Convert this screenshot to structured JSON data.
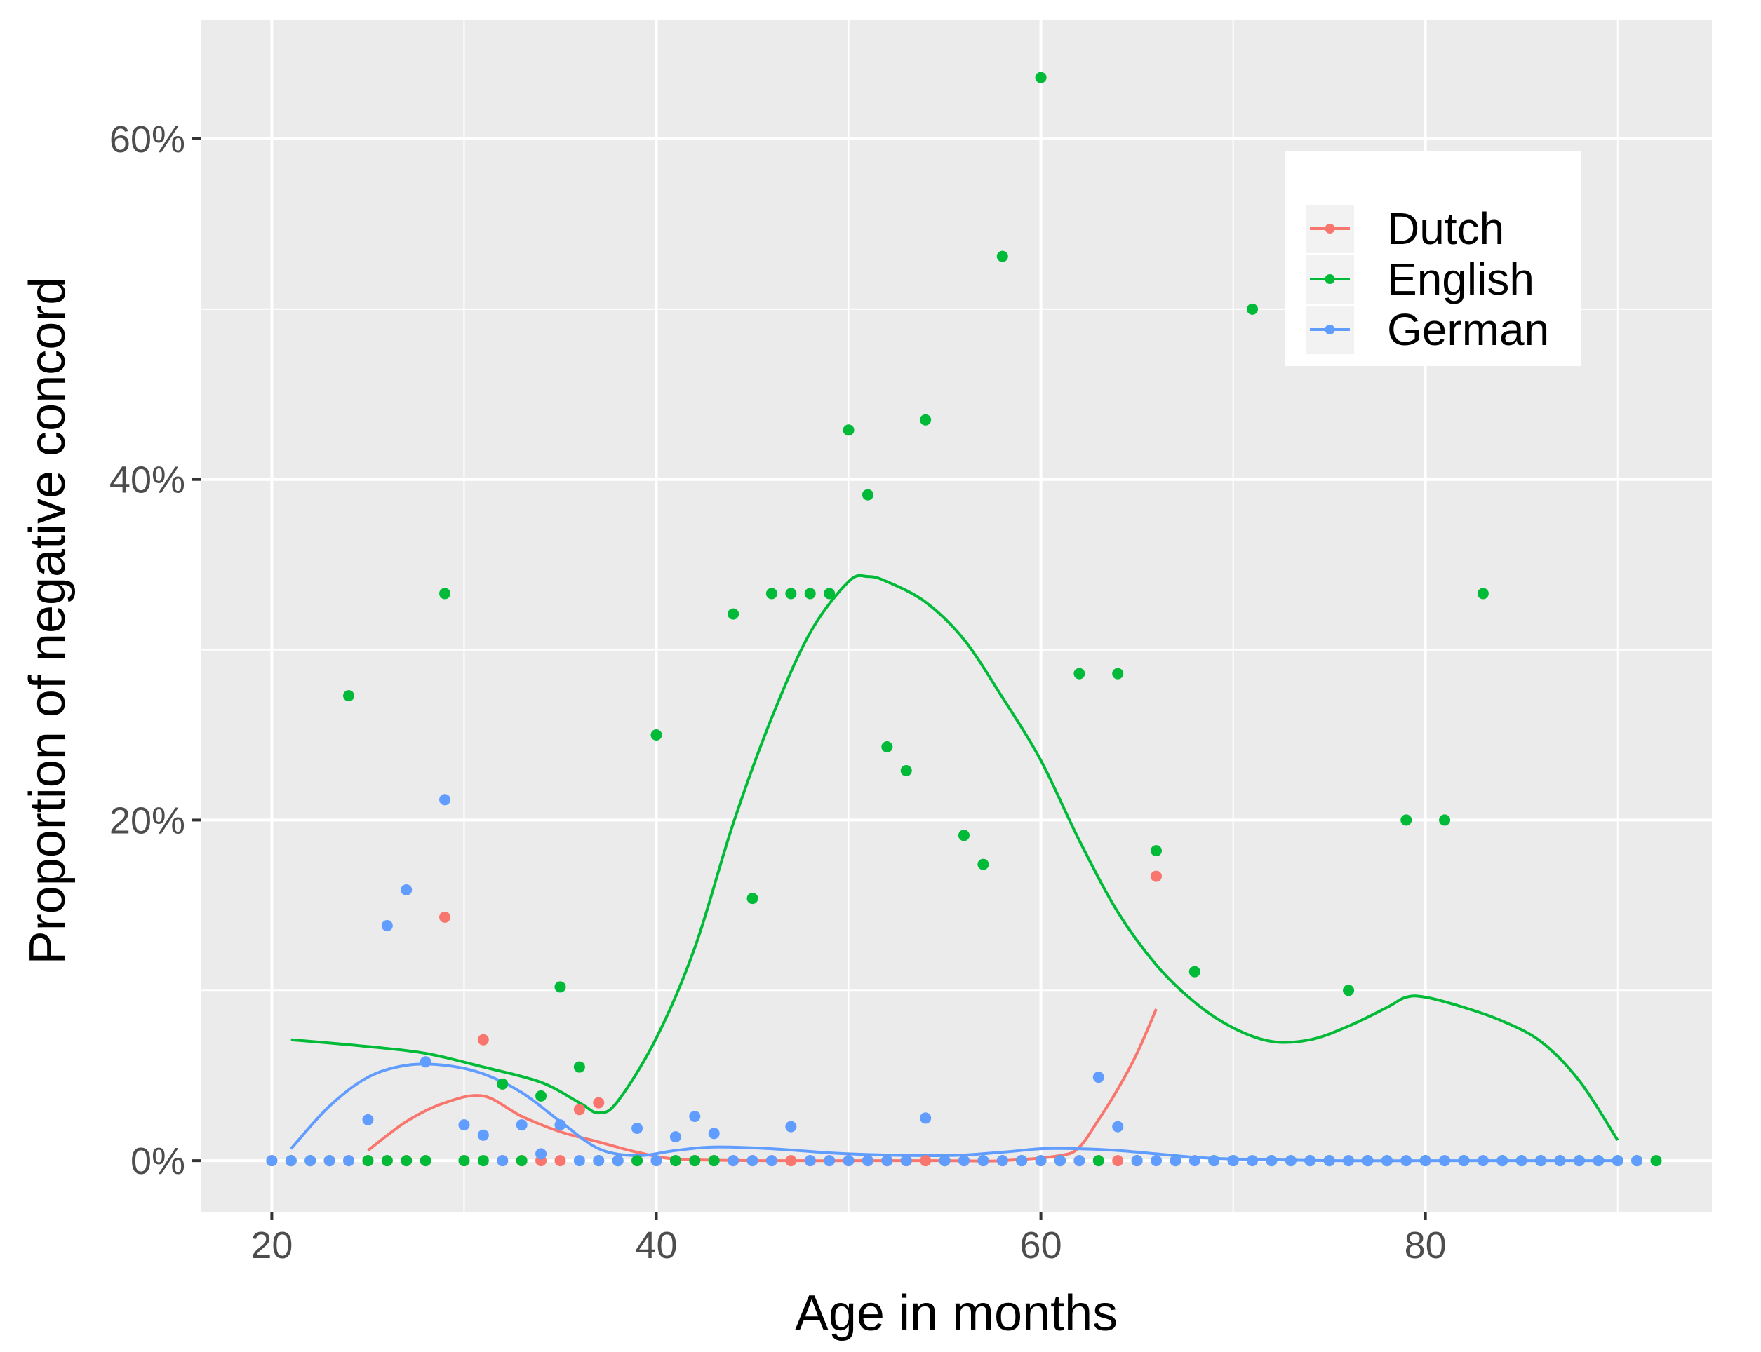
{
  "chart_data": {
    "type": "scatter",
    "title": "",
    "xlabel": "Age in months",
    "ylabel": "Proportion of negative concord",
    "xlim": [
      16.3,
      94.9
    ],
    "ylim": [
      -3,
      67
    ],
    "x_ticks": [
      20,
      40,
      60,
      80
    ],
    "x_tick_labels": [
      "20",
      "40",
      "60",
      "80"
    ],
    "y_ticks": [
      0,
      20,
      40,
      60
    ],
    "y_tick_labels": [
      "0%",
      "20%",
      "40%",
      "60%"
    ],
    "x_minor_ticks": [
      30,
      50,
      70,
      90
    ],
    "y_minor_ticks": [
      10,
      30,
      50
    ],
    "grid": true,
    "legend_position": "top-right",
    "series": [
      {
        "name": "Dutch",
        "color": "#F8766D",
        "points": [
          [
            20,
            0
          ],
          [
            21,
            0
          ],
          [
            22,
            0
          ],
          [
            23,
            0
          ],
          [
            24,
            0
          ],
          [
            25,
            0
          ],
          [
            26,
            0
          ],
          [
            27,
            0
          ],
          [
            28,
            0
          ],
          [
            29,
            14.3
          ],
          [
            30,
            0
          ],
          [
            31,
            7.1
          ],
          [
            32,
            0
          ],
          [
            33,
            0
          ],
          [
            34,
            0
          ],
          [
            35,
            0
          ],
          [
            36,
            3
          ],
          [
            37,
            3.4
          ],
          [
            38,
            0
          ],
          [
            39,
            0
          ],
          [
            40,
            0
          ],
          [
            41,
            0
          ],
          [
            42,
            0
          ],
          [
            43,
            0
          ],
          [
            44,
            0
          ],
          [
            45,
            0
          ],
          [
            46,
            0
          ],
          [
            47,
            0
          ],
          [
            48,
            0
          ],
          [
            49,
            0
          ],
          [
            50,
            0
          ],
          [
            51,
            0
          ],
          [
            52,
            0
          ],
          [
            53,
            0
          ],
          [
            54,
            0
          ],
          [
            55,
            0
          ],
          [
            56,
            0
          ],
          [
            57,
            0
          ],
          [
            58,
            0
          ],
          [
            59,
            0
          ],
          [
            60,
            0
          ],
          [
            61,
            0
          ],
          [
            62,
            0
          ],
          [
            63,
            0
          ],
          [
            64,
            0
          ],
          [
            65,
            0
          ],
          [
            66,
            16.7
          ]
        ],
        "smooth": [
          [
            25,
            0.6
          ],
          [
            27,
            2.3
          ],
          [
            29,
            3.4
          ],
          [
            31,
            3.8
          ],
          [
            33,
            2.6
          ],
          [
            35,
            1.7
          ],
          [
            37,
            1.1
          ],
          [
            39,
            0.5
          ],
          [
            41,
            0.1
          ],
          [
            45,
            0
          ],
          [
            50,
            0
          ],
          [
            55,
            0
          ],
          [
            58,
            0
          ],
          [
            61,
            0.3
          ],
          [
            62,
            0.8
          ],
          [
            63,
            2.4
          ],
          [
            64,
            4.2
          ],
          [
            65,
            6.3
          ],
          [
            66,
            8.9
          ]
        ]
      },
      {
        "name": "English",
        "color": "#00BA38",
        "points": [
          [
            21,
            0
          ],
          [
            22,
            0
          ],
          [
            23,
            0
          ],
          [
            24,
            27.3
          ],
          [
            25,
            0
          ],
          [
            26,
            0
          ],
          [
            27,
            0
          ],
          [
            28,
            0
          ],
          [
            29,
            33.3
          ],
          [
            30,
            0
          ],
          [
            31,
            0
          ],
          [
            32,
            4.5
          ],
          [
            33,
            0
          ],
          [
            34,
            3.8
          ],
          [
            35,
            10.2
          ],
          [
            36,
            5.5
          ],
          [
            37,
            0
          ],
          [
            38,
            0
          ],
          [
            39,
            0
          ],
          [
            40,
            25
          ],
          [
            41,
            0
          ],
          [
            42,
            0
          ],
          [
            43,
            0
          ],
          [
            44,
            32.1
          ],
          [
            45,
            15.4
          ],
          [
            46,
            33.3
          ],
          [
            47,
            33.3
          ],
          [
            48,
            33.3
          ],
          [
            49,
            33.3
          ],
          [
            50,
            42.9
          ],
          [
            51,
            39.1
          ],
          [
            52,
            24.3
          ],
          [
            53,
            22.9
          ],
          [
            54,
            43.5
          ],
          [
            55,
            0
          ],
          [
            56,
            19.1
          ],
          [
            57,
            17.4
          ],
          [
            58,
            53.1
          ],
          [
            59,
            0
          ],
          [
            60,
            63.6
          ],
          [
            61,
            0
          ],
          [
            62,
            28.6
          ],
          [
            63,
            0
          ],
          [
            64,
            28.6
          ],
          [
            65,
            0
          ],
          [
            66,
            18.2
          ],
          [
            67,
            0
          ],
          [
            68,
            11.1
          ],
          [
            69,
            0
          ],
          [
            70,
            0
          ],
          [
            71,
            50
          ],
          [
            72,
            0
          ],
          [
            73,
            0
          ],
          [
            74,
            0
          ],
          [
            75,
            0
          ],
          [
            76,
            10
          ],
          [
            77,
            0
          ],
          [
            78,
            0
          ],
          [
            79,
            20
          ],
          [
            80,
            0
          ],
          [
            81,
            20
          ],
          [
            82,
            0
          ],
          [
            83,
            33.3
          ],
          [
            84,
            0
          ],
          [
            85,
            0
          ],
          [
            86,
            0
          ],
          [
            87,
            0
          ],
          [
            88,
            0
          ],
          [
            89,
            0
          ],
          [
            90,
            0
          ],
          [
            91,
            0
          ],
          [
            92,
            0
          ]
        ],
        "smooth": [
          [
            21,
            7.1
          ],
          [
            25,
            6.7
          ],
          [
            28,
            6.3
          ],
          [
            31,
            5.5
          ],
          [
            34,
            4.6
          ],
          [
            36,
            3.4
          ],
          [
            37,
            2.8
          ],
          [
            38,
            3.5
          ],
          [
            40,
            7.2
          ],
          [
            42,
            12.5
          ],
          [
            44,
            19.8
          ],
          [
            46,
            26
          ],
          [
            48,
            31
          ],
          [
            50,
            34
          ],
          [
            51,
            34.3
          ],
          [
            52,
            34
          ],
          [
            54,
            32.8
          ],
          [
            56,
            30.6
          ],
          [
            58,
            27.2
          ],
          [
            60,
            23.5
          ],
          [
            62,
            18.8
          ],
          [
            64,
            14.6
          ],
          [
            66,
            11.5
          ],
          [
            68,
            9.3
          ],
          [
            70,
            7.8
          ],
          [
            72,
            7
          ],
          [
            74,
            7.1
          ],
          [
            76,
            7.9
          ],
          [
            78,
            9
          ],
          [
            79,
            9.6
          ],
          [
            80,
            9.6
          ],
          [
            82,
            9
          ],
          [
            84,
            8.2
          ],
          [
            86,
            7
          ],
          [
            88,
            4.7
          ],
          [
            90,
            1.2
          ]
        ]
      },
      {
        "name": "German",
        "color": "#619CFF",
        "points": [
          [
            20,
            0
          ],
          [
            21,
            0
          ],
          [
            22,
            0
          ],
          [
            23,
            0
          ],
          [
            24,
            0
          ],
          [
            25,
            2.4
          ],
          [
            26,
            13.8
          ],
          [
            27,
            15.9
          ],
          [
            28,
            5.8
          ],
          [
            29,
            21.2
          ],
          [
            30,
            2.1
          ],
          [
            31,
            1.5
          ],
          [
            32,
            0
          ],
          [
            33,
            2.1
          ],
          [
            34,
            0.4
          ],
          [
            35,
            2.1
          ],
          [
            36,
            0
          ],
          [
            37,
            0
          ],
          [
            38,
            0
          ],
          [
            39,
            1.9
          ],
          [
            40,
            0
          ],
          [
            41,
            1.4
          ],
          [
            42,
            2.6
          ],
          [
            43,
            1.6
          ],
          [
            44,
            0
          ],
          [
            45,
            0
          ],
          [
            46,
            0
          ],
          [
            47,
            2
          ],
          [
            48,
            0
          ],
          [
            49,
            0
          ],
          [
            50,
            0
          ],
          [
            51,
            0
          ],
          [
            52,
            0
          ],
          [
            53,
            0
          ],
          [
            54,
            2.5
          ],
          [
            55,
            0
          ],
          [
            56,
            0
          ],
          [
            57,
            0
          ],
          [
            58,
            0
          ],
          [
            59,
            0
          ],
          [
            60,
            0
          ],
          [
            61,
            0
          ],
          [
            62,
            0
          ],
          [
            63,
            4.9
          ],
          [
            64,
            2
          ],
          [
            65,
            0
          ],
          [
            66,
            0
          ],
          [
            67,
            0
          ],
          [
            68,
            0
          ],
          [
            69,
            0
          ],
          [
            70,
            0
          ],
          [
            71,
            0
          ],
          [
            72,
            0
          ],
          [
            73,
            0
          ],
          [
            74,
            0
          ],
          [
            75,
            0
          ],
          [
            76,
            0
          ],
          [
            77,
            0
          ],
          [
            78,
            0
          ],
          [
            79,
            0
          ],
          [
            80,
            0
          ],
          [
            81,
            0
          ],
          [
            82,
            0
          ],
          [
            83,
            0
          ],
          [
            84,
            0
          ],
          [
            85,
            0
          ],
          [
            86,
            0
          ],
          [
            87,
            0
          ],
          [
            88,
            0
          ],
          [
            89,
            0
          ],
          [
            90,
            0
          ],
          [
            91,
            0
          ]
        ],
        "smooth": [
          [
            21,
            0.7
          ],
          [
            23,
            3.2
          ],
          [
            25,
            4.9
          ],
          [
            27,
            5.6
          ],
          [
            29,
            5.6
          ],
          [
            31,
            5.1
          ],
          [
            33,
            4
          ],
          [
            35,
            2.3
          ],
          [
            37,
            0.7
          ],
          [
            39,
            0.3
          ],
          [
            41,
            0.6
          ],
          [
            43,
            0.8
          ],
          [
            46,
            0.7
          ],
          [
            50,
            0.4
          ],
          [
            55,
            0.3
          ],
          [
            58,
            0.5
          ],
          [
            60,
            0.7
          ],
          [
            62,
            0.7
          ],
          [
            64,
            0.6
          ],
          [
            66,
            0.4
          ],
          [
            68,
            0.2
          ],
          [
            70,
            0.1
          ],
          [
            75,
            0
          ],
          [
            80,
            0
          ],
          [
            85,
            0
          ],
          [
            90,
            0
          ]
        ]
      }
    ]
  }
}
